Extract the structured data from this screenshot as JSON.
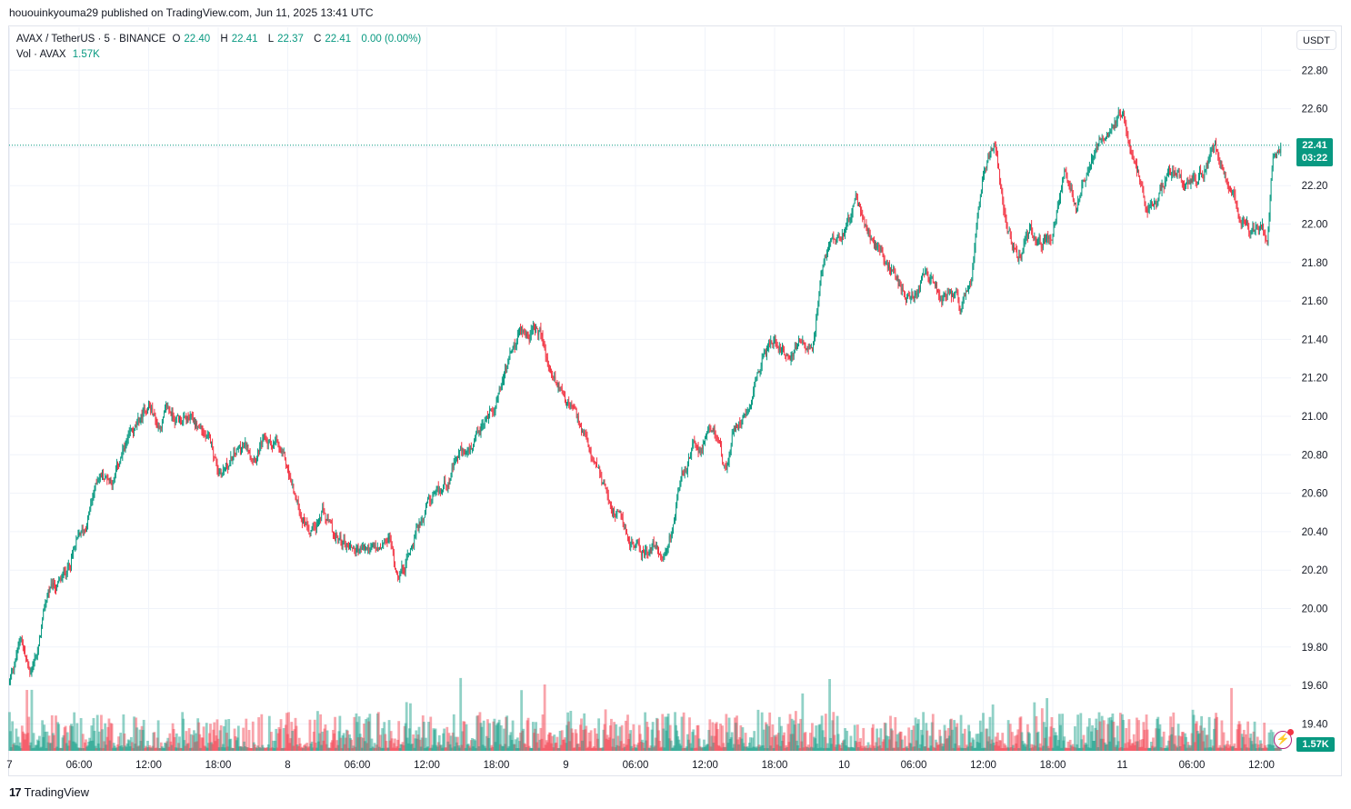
{
  "header": {
    "published_line": "hououinkyouma29 published on TradingView.com, Jun 11, 2025 13:41 UTC"
  },
  "legend": {
    "symbol": "AVAX / TetherUS · 5 · BINANCE",
    "o_label": "O",
    "o_value": "22.40",
    "h_label": "H",
    "h_value": "22.41",
    "l_label": "L",
    "l_value": "22.37",
    "c_label": "C",
    "c_value": "22.41",
    "change": "0.00 (0.00%)",
    "vol_label": "Vol · AVAX",
    "vol_value": "1.57K"
  },
  "axis": {
    "currency": "USDT",
    "last_price": "22.41",
    "countdown": "03:22",
    "volume_badge": "1.57K"
  },
  "footer": {
    "brand": "TradingView"
  },
  "colors": {
    "up": "#089981",
    "down": "#f23645",
    "grid": "#f0f3fa",
    "price_line": "#089981"
  },
  "chart_data": {
    "type": "candlestick",
    "title": "AVAX / TetherUS · 5 · BINANCE",
    "ylabel": "USDT",
    "ylim": [
      19.3,
      22.88
    ],
    "y_ticks": [
      "22.80",
      "22.60",
      "22.40",
      "22.20",
      "22.00",
      "21.80",
      "21.60",
      "21.40",
      "21.20",
      "21.00",
      "20.80",
      "20.60",
      "20.40",
      "20.20",
      "20.00",
      "19.80",
      "19.60",
      "19.40"
    ],
    "x_ticks": [
      "7",
      "06:00",
      "12:00",
      "18:00",
      "8",
      "06:00",
      "12:00",
      "18:00",
      "9",
      "06:00",
      "12:00",
      "18:00",
      "10",
      "06:00",
      "12:00",
      "18:00",
      "11",
      "06:00",
      "12:00"
    ],
    "x_tick_hours": [
      0,
      6,
      12,
      18,
      24,
      30,
      36,
      42,
      48,
      54,
      60,
      66,
      72,
      78,
      84,
      90,
      96,
      102,
      108
    ],
    "x_range_hours": [
      0,
      109.7
    ],
    "last_price": 22.41,
    "price_path": [
      [
        0.0,
        19.62
      ],
      [
        1.0,
        19.85
      ],
      [
        1.7,
        19.66
      ],
      [
        2.5,
        19.8
      ],
      [
        3.3,
        20.08
      ],
      [
        4.5,
        20.13
      ],
      [
        5.5,
        20.3
      ],
      [
        6.5,
        20.4
      ],
      [
        7.7,
        20.7
      ],
      [
        9.0,
        20.68
      ],
      [
        10.0,
        20.84
      ],
      [
        11.0,
        20.92
      ],
      [
        12.0,
        21.07
      ],
      [
        12.8,
        20.95
      ],
      [
        13.5,
        21.02
      ],
      [
        15.0,
        20.98
      ],
      [
        16.5,
        20.94
      ],
      [
        17.5,
        20.82
      ],
      [
        18.0,
        20.72
      ],
      [
        19.0,
        20.76
      ],
      [
        20.0,
        20.83
      ],
      [
        21.0,
        20.82
      ],
      [
        22.0,
        20.86
      ],
      [
        23.0,
        20.85
      ],
      [
        24.0,
        20.7
      ],
      [
        25.0,
        20.5
      ],
      [
        26.0,
        20.44
      ],
      [
        27.0,
        20.5
      ],
      [
        28.0,
        20.35
      ],
      [
        29.0,
        20.34
      ],
      [
        30.0,
        20.32
      ],
      [
        31.0,
        20.3
      ],
      [
        32.0,
        20.28
      ],
      [
        32.8,
        20.35
      ],
      [
        33.3,
        20.2
      ],
      [
        34.0,
        20.22
      ],
      [
        35.0,
        20.4
      ],
      [
        36.0,
        20.55
      ],
      [
        37.0,
        20.55
      ],
      [
        38.0,
        20.7
      ],
      [
        39.0,
        20.8
      ],
      [
        40.0,
        20.8
      ],
      [
        41.0,
        20.95
      ],
      [
        42.0,
        21.1
      ],
      [
        43.0,
        21.28
      ],
      [
        44.0,
        21.42
      ],
      [
        45.0,
        21.45
      ],
      [
        45.8,
        21.42
      ],
      [
        46.5,
        21.25
      ],
      [
        47.5,
        21.15
      ],
      [
        48.5,
        21.05
      ],
      [
        49.5,
        20.88
      ],
      [
        50.5,
        20.7
      ],
      [
        51.5,
        20.6
      ],
      [
        52.5,
        20.48
      ],
      [
        53.5,
        20.35
      ],
      [
        54.5,
        20.3
      ],
      [
        55.5,
        20.32
      ],
      [
        56.5,
        20.28
      ],
      [
        57.0,
        20.38
      ],
      [
        58.0,
        20.68
      ],
      [
        59.0,
        20.82
      ],
      [
        60.0,
        20.85
      ],
      [
        61.0,
        20.9
      ],
      [
        61.8,
        20.7
      ],
      [
        62.5,
        20.95
      ],
      [
        63.5,
        21.05
      ],
      [
        64.5,
        21.25
      ],
      [
        65.5,
        21.38
      ],
      [
        66.5,
        21.38
      ],
      [
        67.5,
        21.32
      ],
      [
        68.5,
        21.4
      ],
      [
        69.3,
        21.3
      ],
      [
        70.0,
        21.7
      ],
      [
        71.0,
        21.95
      ],
      [
        72.0,
        22.0
      ],
      [
        73.0,
        22.12
      ],
      [
        74.0,
        21.95
      ],
      [
        75.0,
        21.85
      ],
      [
        76.0,
        21.75
      ],
      [
        77.0,
        21.68
      ],
      [
        78.0,
        21.6
      ],
      [
        79.0,
        21.72
      ],
      [
        80.0,
        21.62
      ],
      [
        81.0,
        21.6
      ],
      [
        82.0,
        21.55
      ],
      [
        83.0,
        21.68
      ],
      [
        84.0,
        22.3
      ],
      [
        85.0,
        22.45
      ],
      [
        86.0,
        22.0
      ],
      [
        87.0,
        21.8
      ],
      [
        88.0,
        21.95
      ],
      [
        89.0,
        21.92
      ],
      [
        90.0,
        21.95
      ],
      [
        91.0,
        22.28
      ],
      [
        92.0,
        22.1
      ],
      [
        93.0,
        22.3
      ],
      [
        94.0,
        22.45
      ],
      [
        95.0,
        22.55
      ],
      [
        96.0,
        22.58
      ],
      [
        97.0,
        22.3
      ],
      [
        98.0,
        22.1
      ],
      [
        99.0,
        22.1
      ],
      [
        100.0,
        22.28
      ],
      [
        101.0,
        22.25
      ],
      [
        102.0,
        22.22
      ],
      [
        103.0,
        22.28
      ],
      [
        104.0,
        22.42
      ],
      [
        105.0,
        22.25
      ],
      [
        106.0,
        22.08
      ],
      [
        107.0,
        21.98
      ],
      [
        108.0,
        21.95
      ],
      [
        108.5,
        21.92
      ],
      [
        109.0,
        22.35
      ],
      [
        109.7,
        22.41
      ]
    ],
    "candle_interval_minutes": 5,
    "volume_series": "Vol · AVAX",
    "volume_last": "1.57K"
  }
}
